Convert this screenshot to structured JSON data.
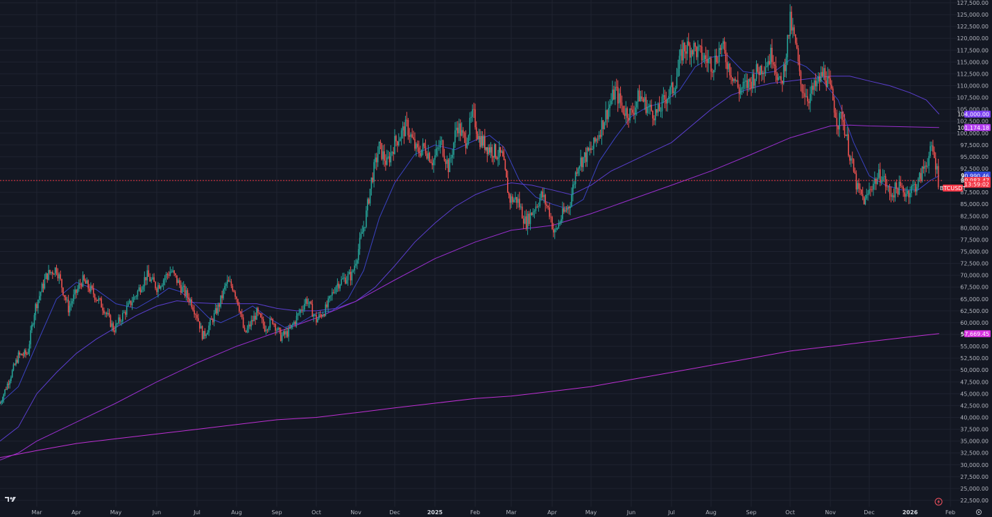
{
  "chart_data": {
    "type": "line",
    "symbol": "BTCUSDT",
    "title": "",
    "xlabel": "",
    "ylabel": "",
    "ylim": [
      21500,
      128500
    ],
    "grid": true,
    "legend": "none",
    "y_ticks": [
      "22,500.00",
      "25,000.00",
      "27,500.00",
      "30,000.00",
      "32,500.00",
      "35,000.00",
      "37,500.00",
      "40,000.00",
      "42,500.00",
      "45,000.00",
      "47,500.00",
      "50,000.00",
      "52,500.00",
      "55,000.00",
      "57,500.00",
      "60,000.00",
      "62,500.00",
      "65,000.00",
      "67,500.00",
      "70,000.00",
      "72,500.00",
      "75,000.00",
      "77,500.00",
      "80,000.00",
      "82,500.00",
      "85,000.00",
      "87,500.00",
      "90,000.00",
      "92,500.00",
      "95,000.00",
      "97,500.00",
      "100,000.00",
      "102,500.00",
      "105,000.00",
      "107,500.00",
      "110,000.00",
      "112,500.00",
      "115,000.00",
      "117,500.00",
      "120,000.00",
      "122,500.00",
      "125,000.00",
      "127,500.00"
    ],
    "x_ticks": [
      {
        "label": "Mar",
        "t": 2.0,
        "bold": false
      },
      {
        "label": "Apr",
        "t": 3.0,
        "bold": false
      },
      {
        "label": "May",
        "t": 4.0,
        "bold": false
      },
      {
        "label": "Jun",
        "t": 5.0,
        "bold": false
      },
      {
        "label": "Jul",
        "t": 6.0,
        "bold": false
      },
      {
        "label": "Aug",
        "t": 7.0,
        "bold": false
      },
      {
        "label": "Sep",
        "t": 8.0,
        "bold": false
      },
      {
        "label": "Oct",
        "t": 9.0,
        "bold": false
      },
      {
        "label": "Nov",
        "t": 10.0,
        "bold": false
      },
      {
        "label": "Dec",
        "t": 11.0,
        "bold": false
      },
      {
        "label": "2025",
        "t": 12.0,
        "bold": true
      },
      {
        "label": "Feb",
        "t": 13.0,
        "bold": false
      },
      {
        "label": "Mar",
        "t": 14.0,
        "bold": false
      },
      {
        "label": "Apr",
        "t": 15.0,
        "bold": false
      },
      {
        "label": "May",
        "t": 16.0,
        "bold": false
      },
      {
        "label": "Jun",
        "t": 17.0,
        "bold": false
      },
      {
        "label": "Jul",
        "t": 18.0,
        "bold": false
      },
      {
        "label": "Aug",
        "t": 19.0,
        "bold": false
      },
      {
        "label": "Sep",
        "t": 20.0,
        "bold": false
      },
      {
        "label": "Oct",
        "t": 21.0,
        "bold": false
      },
      {
        "label": "Nov",
        "t": 22.0,
        "bold": false
      },
      {
        "label": "Dec",
        "t": 23.0,
        "bold": false
      },
      {
        "label": "2026",
        "t": 24.0,
        "bold": true
      },
      {
        "label": "Feb",
        "t": 25.0,
        "bold": false
      }
    ],
    "x_range": [
      1.0,
      25.3
    ],
    "price_anchors": [
      [
        1.0,
        43000
      ],
      [
        1.25,
        48000
      ],
      [
        1.5,
        53000
      ],
      [
        1.75,
        53500
      ],
      [
        1.95,
        63000
      ],
      [
        2.25,
        70000
      ],
      [
        2.5,
        71500
      ],
      [
        2.8,
        63000
      ],
      [
        3.15,
        69000
      ],
      [
        3.45,
        66000
      ],
      [
        3.7,
        63000
      ],
      [
        3.95,
        58500
      ],
      [
        4.2,
        62000
      ],
      [
        4.5,
        66000
      ],
      [
        4.75,
        70000
      ],
      [
        5.0,
        67500
      ],
      [
        5.35,
        71000
      ],
      [
        5.6,
        67500
      ],
      [
        5.85,
        64500
      ],
      [
        6.0,
        61500
      ],
      [
        6.15,
        57000
      ],
      [
        6.35,
        60000
      ],
      [
        6.55,
        63500
      ],
      [
        6.75,
        68500
      ],
      [
        6.92,
        67500
      ],
      [
        7.05,
        64000
      ],
      [
        7.2,
        57500
      ],
      [
        7.3,
        59000
      ],
      [
        7.5,
        62000
      ],
      [
        7.7,
        59000
      ],
      [
        7.9,
        60500
      ],
      [
        8.1,
        57000
      ],
      [
        8.3,
        58000
      ],
      [
        8.5,
        61000
      ],
      [
        8.75,
        65000
      ],
      [
        9.0,
        60500
      ],
      [
        9.25,
        63000
      ],
      [
        9.5,
        68000
      ],
      [
        9.75,
        69500
      ],
      [
        9.9,
        70000
      ],
      [
        10.05,
        75000
      ],
      [
        10.25,
        82000
      ],
      [
        10.4,
        90000
      ],
      [
        10.6,
        97000
      ],
      [
        10.8,
        93500
      ],
      [
        11.0,
        98000
      ],
      [
        11.3,
        101500
      ],
      [
        11.55,
        96000
      ],
      [
        11.75,
        97000
      ],
      [
        11.95,
        94000
      ],
      [
        12.15,
        98000
      ],
      [
        12.35,
        92500
      ],
      [
        12.55,
        102000
      ],
      [
        12.75,
        98000
      ],
      [
        12.95,
        104000
      ],
      [
        13.1,
        99000
      ],
      [
        13.35,
        97000
      ],
      [
        13.55,
        96000
      ],
      [
        13.75,
        95000
      ],
      [
        13.95,
        86000
      ],
      [
        14.15,
        86000
      ],
      [
        14.35,
        81000
      ],
      [
        14.55,
        84000
      ],
      [
        14.75,
        87000
      ],
      [
        14.95,
        83000
      ],
      [
        15.05,
        78500
      ],
      [
        15.25,
        82500
      ],
      [
        15.45,
        85000
      ],
      [
        15.65,
        93500
      ],
      [
        15.85,
        95000
      ],
      [
        16.05,
        97000
      ],
      [
        16.35,
        103500
      ],
      [
        16.6,
        109000
      ],
      [
        16.8,
        105000
      ],
      [
        17.0,
        104000
      ],
      [
        17.2,
        108000
      ],
      [
        17.45,
        105000
      ],
      [
        17.65,
        104000
      ],
      [
        17.85,
        107500
      ],
      [
        18.05,
        109500
      ],
      [
        18.3,
        118000
      ],
      [
        18.55,
        118000
      ],
      [
        18.8,
        116000
      ],
      [
        19.05,
        114500
      ],
      [
        19.25,
        118500
      ],
      [
        19.45,
        114000
      ],
      [
        19.7,
        109000
      ],
      [
        19.95,
        110500
      ],
      [
        20.15,
        113000
      ],
      [
        20.4,
        115000
      ],
      [
        20.55,
        117000
      ],
      [
        20.75,
        109500
      ],
      [
        20.85,
        114000
      ],
      [
        21.0,
        123500
      ],
      [
        21.15,
        118000
      ],
      [
        21.25,
        110500
      ],
      [
        21.45,
        107500
      ],
      [
        21.65,
        110000
      ],
      [
        21.85,
        113000
      ],
      [
        22.05,
        107500
      ],
      [
        22.2,
        102000
      ],
      [
        22.3,
        104000
      ],
      [
        22.5,
        95500
      ],
      [
        22.7,
        88000
      ],
      [
        22.9,
        85500
      ],
      [
        23.05,
        89000
      ],
      [
        23.3,
        91500
      ],
      [
        23.5,
        87000
      ],
      [
        23.7,
        88500
      ],
      [
        23.9,
        87500
      ],
      [
        24.0,
        88000
      ],
      [
        24.2,
        89500
      ],
      [
        24.4,
        94000
      ],
      [
        24.55,
        96500
      ],
      [
        24.65,
        93000
      ],
      [
        24.72,
        89000
      ]
    ],
    "series": [
      {
        "color": "#3b43c4",
        "width": 1,
        "values": [
          [
            1.0,
            43000
          ],
          [
            1.5,
            46500
          ],
          [
            2.0,
            55500
          ],
          [
            2.5,
            65000
          ],
          [
            3.0,
            68500
          ],
          [
            3.5,
            67000
          ],
          [
            4.0,
            64000
          ],
          [
            4.5,
            63000
          ],
          [
            5.0,
            65500
          ],
          [
            5.3,
            67300
          ],
          [
            5.6,
            66500
          ],
          [
            6.0,
            63500
          ],
          [
            6.3,
            61000
          ],
          [
            6.6,
            60000
          ],
          [
            7.0,
            61500
          ],
          [
            7.4,
            63500
          ],
          [
            7.8,
            61000
          ],
          [
            8.2,
            59000
          ],
          [
            8.6,
            60000
          ],
          [
            9.0,
            62000
          ],
          [
            9.4,
            62500
          ],
          [
            9.8,
            65000
          ],
          [
            10.2,
            71000
          ],
          [
            10.6,
            82000
          ],
          [
            11.0,
            89500
          ],
          [
            11.5,
            95500
          ],
          [
            12.0,
            97500
          ],
          [
            12.5,
            96500
          ],
          [
            13.0,
            98500
          ],
          [
            13.4,
            99500
          ],
          [
            13.8,
            97000
          ],
          [
            14.2,
            90000
          ],
          [
            14.6,
            86500
          ],
          [
            15.0,
            85000
          ],
          [
            15.4,
            84000
          ],
          [
            15.8,
            86000
          ],
          [
            16.2,
            94000
          ],
          [
            16.6,
            99000
          ],
          [
            17.0,
            103500
          ],
          [
            17.4,
            105500
          ],
          [
            17.8,
            106500
          ],
          [
            18.2,
            109000
          ],
          [
            18.6,
            114000
          ],
          [
            19.0,
            116000
          ],
          [
            19.4,
            116500
          ],
          [
            19.8,
            113000
          ],
          [
            20.2,
            112500
          ],
          [
            20.6,
            113000
          ],
          [
            21.0,
            115500
          ],
          [
            21.4,
            114000
          ],
          [
            21.8,
            111000
          ],
          [
            22.2,
            107000
          ],
          [
            22.6,
            98000
          ],
          [
            23.0,
            91000
          ],
          [
            23.4,
            89000
          ],
          [
            23.8,
            88000
          ],
          [
            24.2,
            88000
          ],
          [
            24.5,
            90000
          ],
          [
            24.72,
            90990
          ]
        ]
      },
      {
        "color": "#5c3fd1",
        "width": 1,
        "values": [
          [
            1.0,
            35000
          ],
          [
            1.5,
            38000
          ],
          [
            2.0,
            45000
          ],
          [
            2.5,
            49500
          ],
          [
            3.0,
            53500
          ],
          [
            3.5,
            56500
          ],
          [
            4.0,
            59000
          ],
          [
            4.5,
            61500
          ],
          [
            5.0,
            63500
          ],
          [
            5.5,
            64600
          ],
          [
            6.0,
            64200
          ],
          [
            6.5,
            64000
          ],
          [
            7.0,
            64000
          ],
          [
            7.5,
            64000
          ],
          [
            8.0,
            63000
          ],
          [
            8.5,
            62500
          ],
          [
            9.0,
            62500
          ],
          [
            9.5,
            63000
          ],
          [
            10.0,
            64500
          ],
          [
            10.5,
            67500
          ],
          [
            11.0,
            72000
          ],
          [
            11.5,
            77000
          ],
          [
            12.0,
            81000
          ],
          [
            12.5,
            84500
          ],
          [
            13.0,
            87000
          ],
          [
            13.5,
            88500
          ],
          [
            14.0,
            89500
          ],
          [
            14.5,
            89000
          ],
          [
            15.0,
            88000
          ],
          [
            15.5,
            87000
          ],
          [
            16.0,
            89000
          ],
          [
            16.5,
            92000
          ],
          [
            17.0,
            94000
          ],
          [
            17.5,
            96000
          ],
          [
            18.0,
            98000
          ],
          [
            18.5,
            101500
          ],
          [
            19.0,
            105000
          ],
          [
            19.5,
            108000
          ],
          [
            20.0,
            109500
          ],
          [
            20.5,
            110500
          ],
          [
            21.0,
            111000
          ],
          [
            21.5,
            111500
          ],
          [
            22.0,
            112000
          ],
          [
            22.5,
            112000
          ],
          [
            23.0,
            111000
          ],
          [
            23.5,
            110000
          ],
          [
            24.0,
            108500
          ],
          [
            24.4,
            107000
          ],
          [
            24.72,
            104000
          ]
        ]
      },
      {
        "color": "#9b2fd0",
        "width": 1,
        "values": [
          [
            1.0,
            31000
          ],
          [
            1.5,
            32500
          ],
          [
            2.0,
            35000
          ],
          [
            3.0,
            39000
          ],
          [
            4.0,
            43000
          ],
          [
            5.0,
            47500
          ],
          [
            6.0,
            51500
          ],
          [
            7.0,
            55000
          ],
          [
            8.0,
            58000
          ],
          [
            9.0,
            61000
          ],
          [
            10.0,
            64500
          ],
          [
            11.0,
            69000
          ],
          [
            12.0,
            73500
          ],
          [
            13.0,
            77000
          ],
          [
            14.0,
            79500
          ],
          [
            15.0,
            80500
          ],
          [
            16.0,
            83000
          ],
          [
            17.0,
            86000
          ],
          [
            18.0,
            89000
          ],
          [
            19.0,
            92000
          ],
          [
            20.0,
            95500
          ],
          [
            21.0,
            99000
          ],
          [
            22.0,
            101500
          ],
          [
            22.5,
            101700
          ],
          [
            23.0,
            101500
          ],
          [
            24.0,
            101300
          ],
          [
            24.72,
            101174
          ]
        ]
      },
      {
        "color": "#c030d6",
        "width": 1,
        "values": [
          [
            1.0,
            31500
          ],
          [
            2.0,
            33000
          ],
          [
            3.0,
            34500
          ],
          [
            4.0,
            35500
          ],
          [
            5.0,
            36500
          ],
          [
            6.0,
            37500
          ],
          [
            7.0,
            38500
          ],
          [
            8.0,
            39500
          ],
          [
            9.0,
            40000
          ],
          [
            10.0,
            41000
          ],
          [
            11.0,
            42000
          ],
          [
            12.0,
            43000
          ],
          [
            13.0,
            44000
          ],
          [
            14.0,
            44500
          ],
          [
            15.0,
            45500
          ],
          [
            16.0,
            46500
          ],
          [
            17.0,
            48000
          ],
          [
            18.0,
            49500
          ],
          [
            19.0,
            51000
          ],
          [
            20.0,
            52500
          ],
          [
            21.0,
            54000
          ],
          [
            22.0,
            55000
          ],
          [
            23.0,
            56000
          ],
          [
            24.0,
            57000
          ],
          [
            24.72,
            57669
          ]
        ]
      }
    ],
    "current_price": 89983.47,
    "price_labels": [
      {
        "text": "104,000.00",
        "value": 104000,
        "bg": "#7b3ff2"
      },
      {
        "text": "101,174.18",
        "value": 101174.18,
        "bg": "#b43ff0"
      },
      {
        "text": "91,125.34",
        "value": 91125.34,
        "bg": "#2962ff"
      },
      {
        "text": "90,990.46",
        "value": 90990.46,
        "bg": "#3745d8"
      },
      {
        "text": "89,983.47",
        "value": 89983.47,
        "bg": "#f23645"
      },
      {
        "text": "13:59:02",
        "value": 89200,
        "bg": "#f23645"
      },
      {
        "text": "57,669.45",
        "value": 57669.45,
        "bg": "#d633e0"
      }
    ],
    "up_color": "#26a69a",
    "down_color": "#ef5350"
  }
}
